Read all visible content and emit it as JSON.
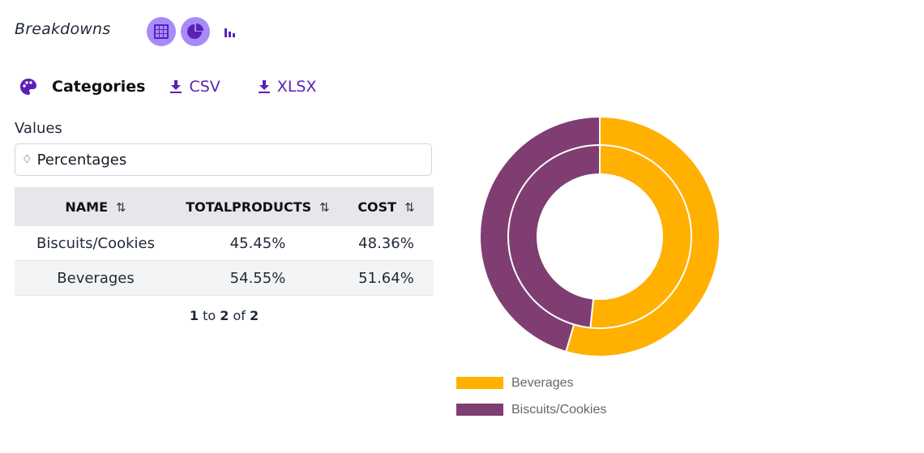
{
  "header": {
    "title": "Breakdowns",
    "view_modes": [
      {
        "name": "table-view",
        "icon": "grid-icon",
        "active": true
      },
      {
        "name": "pie-view",
        "icon": "pie-chart-icon",
        "active": true
      },
      {
        "name": "bar-view",
        "icon": "bar-chart-icon",
        "active": false
      }
    ]
  },
  "toolbar": {
    "group_label": "Categories",
    "group_icon": "palette-icon",
    "csv_label": "CSV",
    "xlsx_label": "XLSX"
  },
  "values_select": {
    "label": "Values",
    "selected": "Percentages"
  },
  "table": {
    "columns": [
      "NAME",
      "TOTALPRODUCTS",
      "COST"
    ],
    "rows": [
      [
        "Biscuits/Cookies",
        "45.45%",
        "48.36%"
      ],
      [
        "Beverages",
        "54.55%",
        "51.64%"
      ]
    ],
    "pager": {
      "from": "1",
      "to_word": "to",
      "to": "2",
      "of_word": "of",
      "total": "2"
    }
  },
  "colors": {
    "accent": "#5b21b6",
    "accent_light": "#a78bfa",
    "beverages": "#ffb000",
    "biscuits": "#803d72"
  },
  "chart_data": {
    "type": "pie",
    "variant": "nested-donut",
    "categories": [
      "Beverages",
      "Biscuits/Cookies"
    ],
    "series": [
      {
        "name": "TOTALPRODUCTS",
        "ring": "outer",
        "values": [
          54.55,
          45.45
        ]
      },
      {
        "name": "COST",
        "ring": "inner",
        "values": [
          51.64,
          48.36
        ]
      }
    ],
    "legend": {
      "position": "bottom-left",
      "entries": [
        {
          "label": "Beverages",
          "color": "#ffb000"
        },
        {
          "label": "Biscuits/Cookies",
          "color": "#803d72"
        }
      ]
    },
    "start_angle": "top",
    "direction": "clockwise"
  }
}
